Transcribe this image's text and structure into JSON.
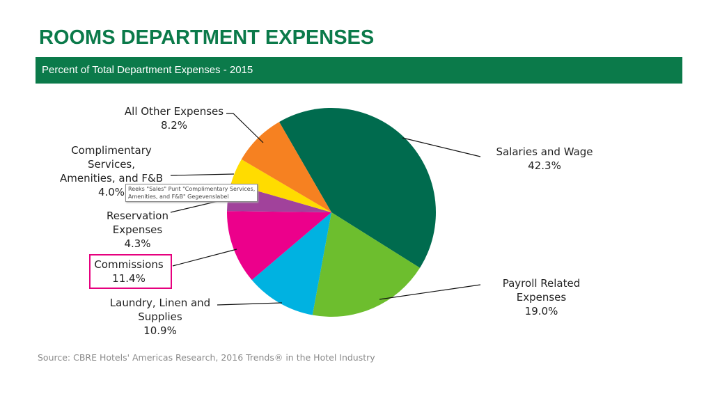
{
  "title": "ROOMS DEPARTMENT EXPENSES",
  "subtitle": "Percent of Total Department Expenses - 2015",
  "source": "Source: CBRE Hotels' Americas Research, 2016 Trends® in the Hotel Industry",
  "tooltip": "Reeks \"Sales\" Punt \"Complimentary Services,\nAmenities, and F&B\" Gegevenslabel",
  "chart_data": {
    "type": "pie",
    "title": "Percent of Total Department Expenses - 2015",
    "slices": [
      {
        "label": "Salaries and Wage",
        "value": 42.3,
        "display": "42.3%",
        "color": "#006b4e"
      },
      {
        "label": "Payroll Related\nExpenses",
        "value": 19.0,
        "display": "19.0%",
        "color": "#6dbe2e"
      },
      {
        "label": "Laundry, Linen and\nSupplies",
        "value": 10.9,
        "display": "10.9%",
        "color": "#00b2e1"
      },
      {
        "label": "Commissions",
        "value": 11.4,
        "display": "11.4%",
        "color": "#ec008b"
      },
      {
        "label": "Reservation\nExpenses",
        "value": 4.3,
        "display": "4.3%",
        "color": "#a1429b"
      },
      {
        "label": "Complimentary\nServices,\nAmenities, and F&B",
        "value": 4.0,
        "display": "4.0%",
        "color": "#ffdc00"
      },
      {
        "label": "All Other Expenses",
        "value": 8.2,
        "display": "8.2%",
        "color": "#f68121"
      }
    ],
    "selected_label": "Commissions"
  }
}
